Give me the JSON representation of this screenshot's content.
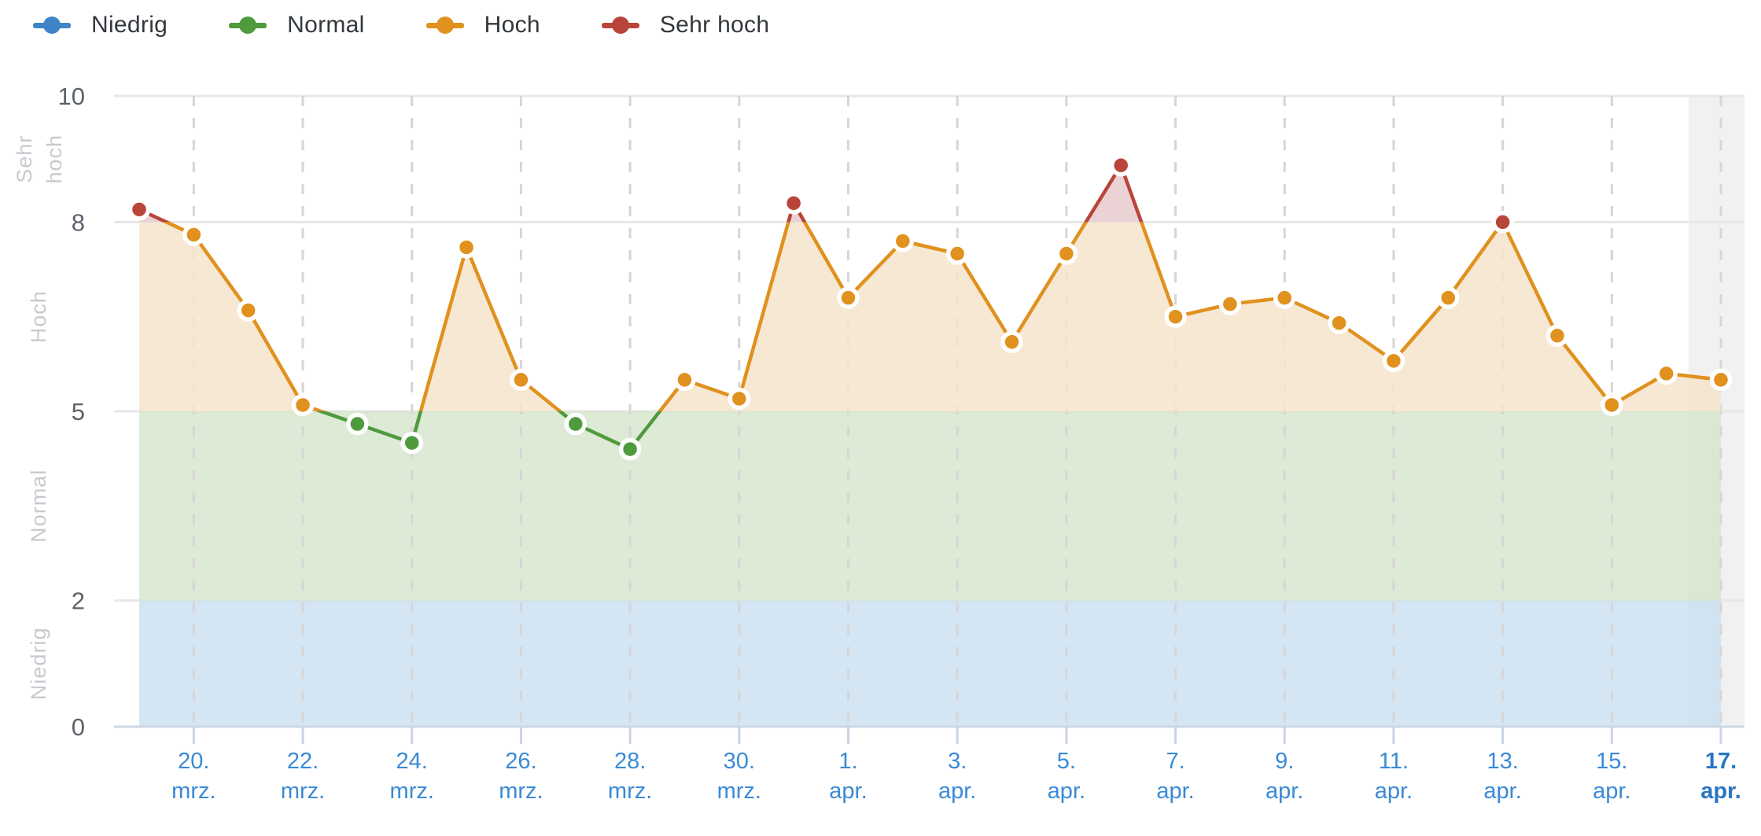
{
  "legend": {
    "items": [
      {
        "label": "Niedrig",
        "color": "#3d85c6"
      },
      {
        "label": "Normal",
        "color": "#4f9a3d"
      },
      {
        "label": "Hoch",
        "color": "#e0911e"
      },
      {
        "label": "Sehr hoch",
        "color": "#b9453a"
      }
    ]
  },
  "chart_data": {
    "type": "line",
    "x": [
      "19. mrz.",
      "20. mrz.",
      "21. mrz.",
      "22. mrz.",
      "23. mrz.",
      "24. mrz.",
      "25. mrz.",
      "26. mrz.",
      "27. mrz.",
      "28. mrz.",
      "29. mrz.",
      "30. mrz.",
      "31. mrz.",
      "1. apr.",
      "2. apr.",
      "3. apr.",
      "4. apr.",
      "5. apr.",
      "6. apr.",
      "7. apr.",
      "8. apr.",
      "9. apr.",
      "10. apr.",
      "11. apr.",
      "12. apr.",
      "13. apr.",
      "14. apr.",
      "15. apr.",
      "16. apr.",
      "17. apr."
    ],
    "values": [
      8.2,
      7.8,
      6.6,
      5.1,
      4.8,
      4.5,
      7.6,
      5.5,
      4.8,
      4.4,
      5.5,
      5.2,
      8.3,
      6.8,
      7.7,
      7.5,
      6.1,
      7.5,
      8.9,
      6.5,
      6.7,
      6.8,
      6.4,
      5.8,
      6.8,
      8.0,
      6.2,
      5.1,
      5.6,
      5.5
    ],
    "ylim": [
      0,
      10
    ],
    "yticks": [
      0,
      2,
      5,
      8,
      10
    ],
    "x_tick_labels": [
      "20. mrz.",
      "22. mrz.",
      "24. mrz.",
      "26. mrz.",
      "28. mrz.",
      "30. mrz.",
      "1. apr.",
      "3. apr.",
      "5. apr.",
      "7. apr.",
      "9. apr.",
      "11. apr.",
      "13. apr.",
      "15. apr.",
      "17. apr."
    ],
    "today_column": "17. apr.",
    "grid": true,
    "legend_position": "top-left",
    "bands": [
      {
        "label": "Niedrig",
        "range": [
          0,
          2
        ],
        "color": "#3d85c6",
        "zone_fill": "rgba(201,222,240,0.8)"
      },
      {
        "label": "Normal",
        "range": [
          2,
          5
        ],
        "color": "#4f9a3d",
        "zone_fill": "rgba(213,229,202,0.8)"
      },
      {
        "label": "Hoch",
        "range": [
          5,
          8
        ],
        "color": "#e0911e",
        "zone_fill": "rgba(246,228,203,0.85)"
      },
      {
        "label": "Sehr hoch",
        "range": [
          8,
          10
        ],
        "color": "#b9453a",
        "zone_fill": "rgba(233,206,208,0.9)"
      }
    ]
  },
  "colors": {
    "today_band": "#f1f1f1",
    "h_gridline": "#e7e7e7",
    "v_dash": "#d6d6d6",
    "axis_line": "#ccd7e4",
    "tick_mark": "#c9d4e4",
    "x_label": "#3a8ad6",
    "x_label_today": "#2a76c4",
    "y_tick_label": "#5a626c",
    "zone_label": "#c6cacf",
    "marker_ring": "#ffffff"
  }
}
